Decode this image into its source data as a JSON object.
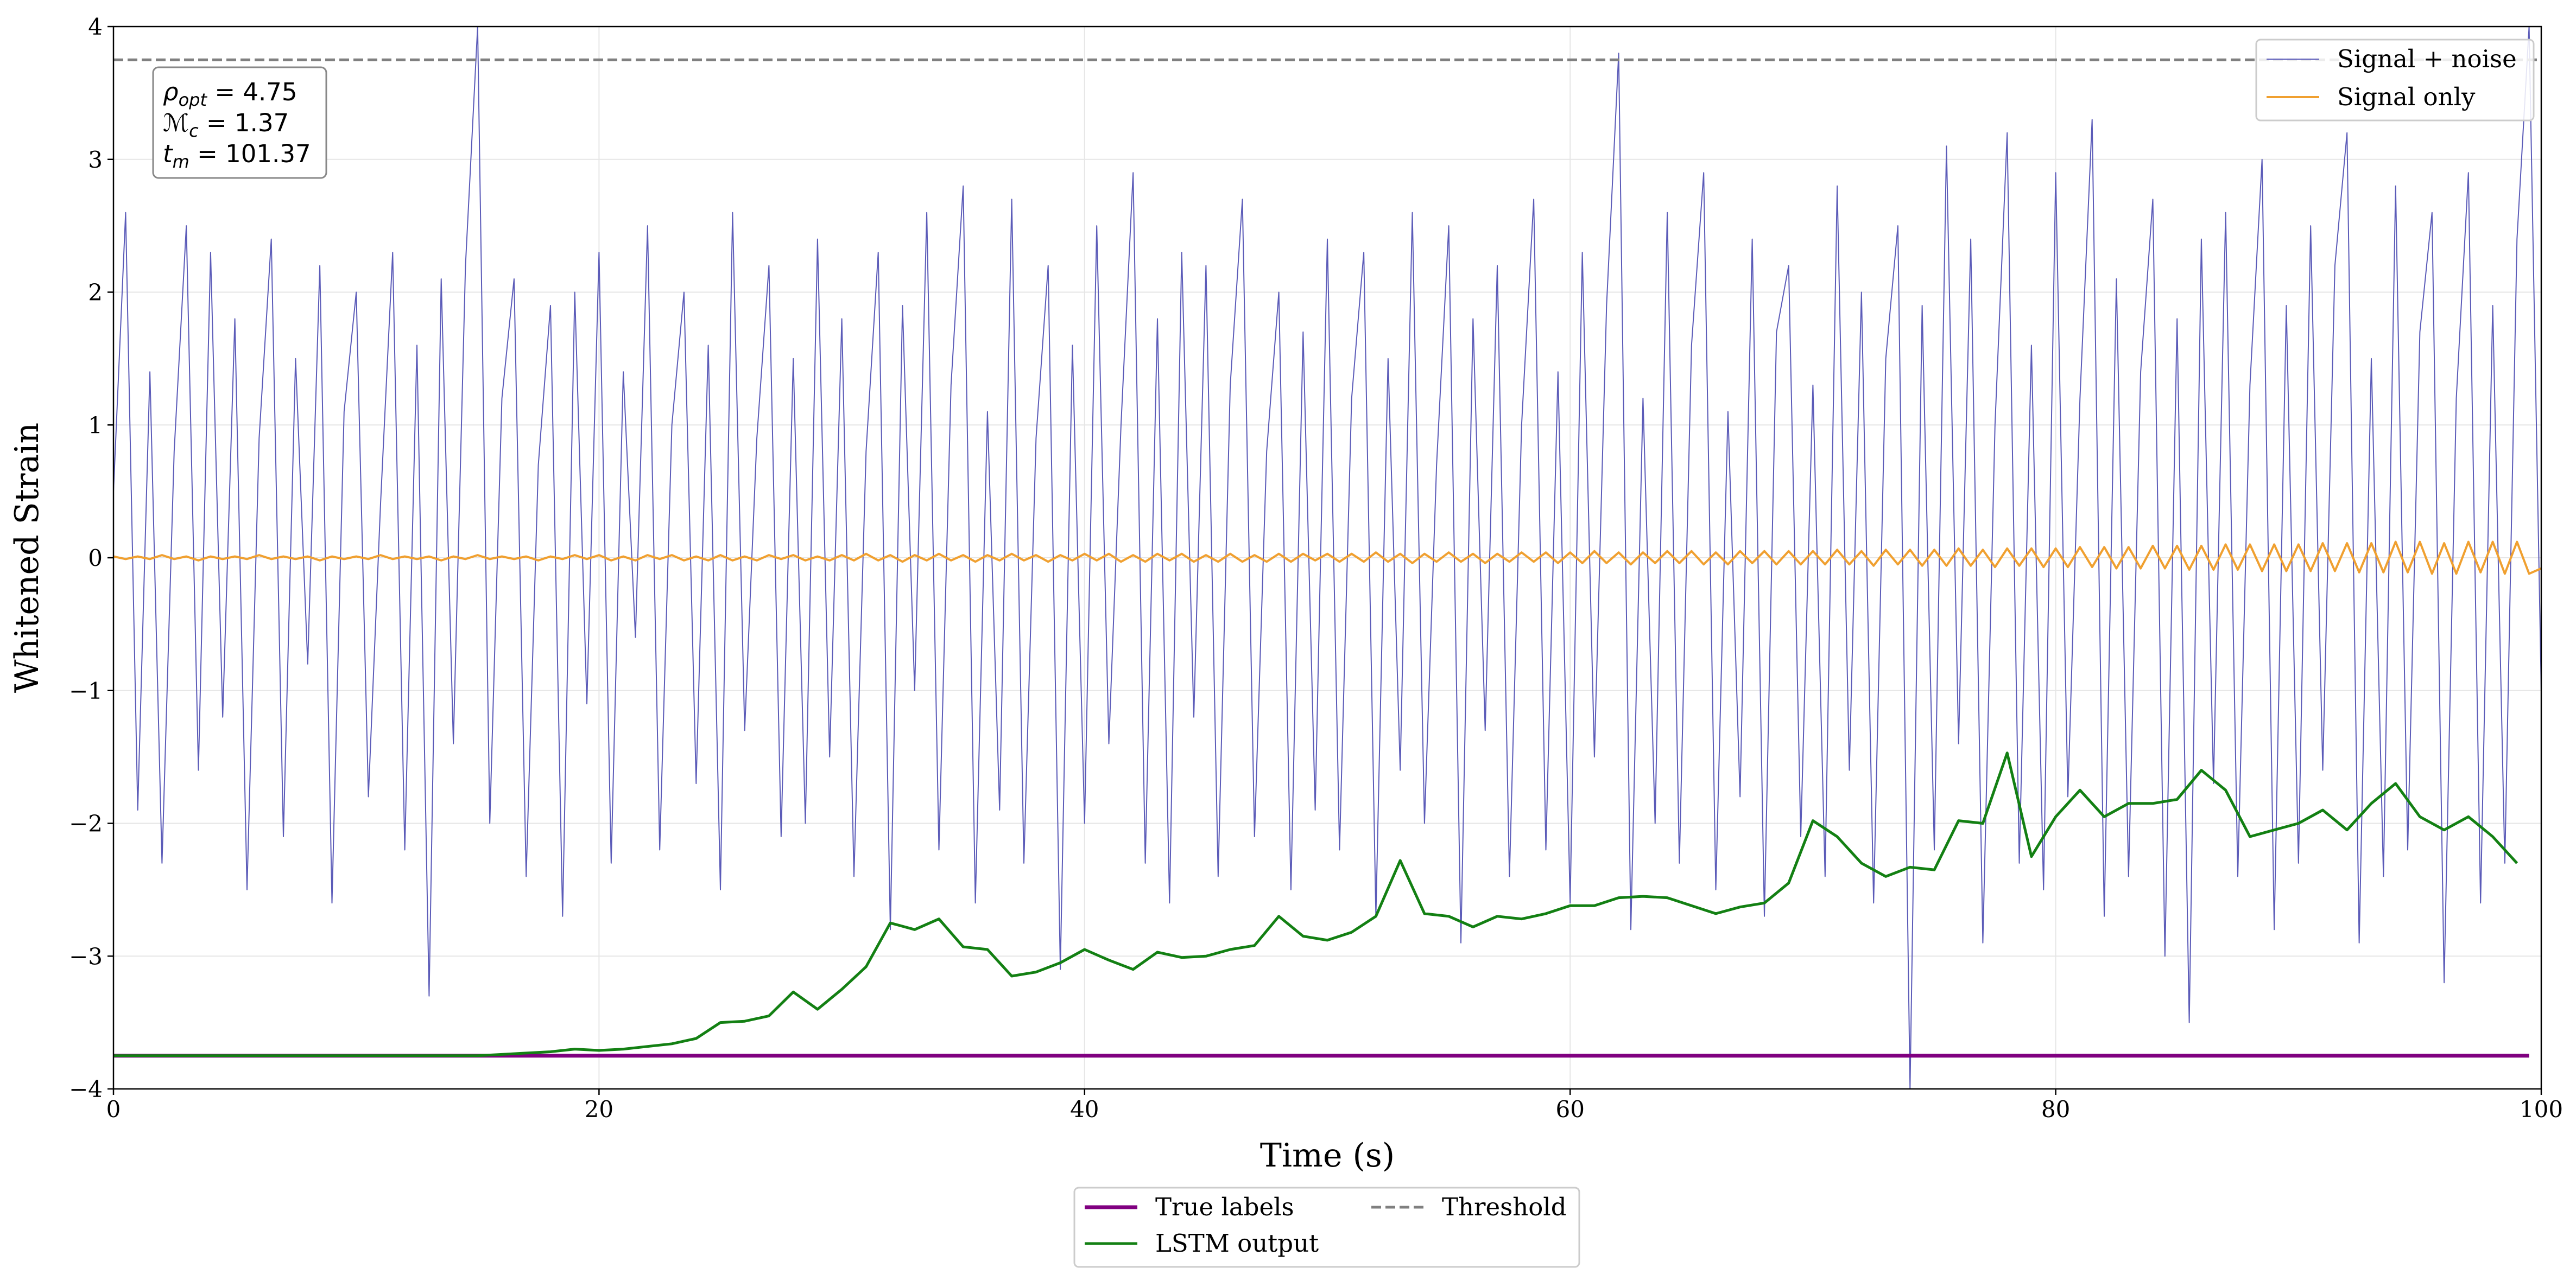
{
  "chart_data": {
    "type": "line",
    "xlabel": "Time (s)",
    "ylabel": "Whitened Strain",
    "xlim": [
      0,
      100
    ],
    "ylim": [
      -4,
      4
    ],
    "xticks": [
      0,
      20,
      40,
      60,
      80,
      100
    ],
    "yticks": [
      {
        "value": -4,
        "label": "−4"
      },
      {
        "value": -3,
        "label": "−3"
      },
      {
        "value": -2,
        "label": "−2"
      },
      {
        "value": -1,
        "label": "−1"
      },
      0,
      1,
      2,
      3,
      4
    ],
    "grid": true,
    "annotations": [
      {
        "main": "ρ",
        "sub": "opt",
        "rest": " = 4.75"
      },
      {
        "main": "ℳ",
        "sub": "c",
        "rest": " = 1.37"
      },
      {
        "main": "t",
        "sub": "m",
        "rest": " = 101.37"
      }
    ],
    "threshold": {
      "name": "Threshold",
      "value": 3.75,
      "color": "#808080",
      "dashed": true,
      "legend_loc": "lower center"
    },
    "x": [
      0,
      0.5,
      1,
      1.5,
      2,
      2.5,
      3,
      3.5,
      4,
      4.5,
      5,
      5.5,
      6,
      6.5,
      7,
      7.5,
      8,
      8.5,
      9,
      9.5,
      10,
      10.5,
      11,
      11.5,
      12,
      12.5,
      13,
      13.5,
      14,
      14.5,
      15,
      15.5,
      16,
      16.5,
      17,
      17.5,
      18,
      18.5,
      19,
      19.5,
      20,
      20.5,
      21,
      21.5,
      22,
      22.5,
      23,
      23.5,
      24,
      24.5,
      25,
      25.5,
      26,
      26.5,
      27,
      27.5,
      28,
      28.5,
      29,
      29.5,
      30,
      30.5,
      31,
      31.5,
      32,
      32.5,
      33,
      33.5,
      34,
      34.5,
      35,
      35.5,
      36,
      36.5,
      37,
      37.5,
      38,
      38.5,
      39,
      39.5,
      40,
      40.5,
      41,
      41.5,
      42,
      42.5,
      43,
      43.5,
      44,
      44.5,
      45,
      45.5,
      46,
      46.5,
      47,
      47.5,
      48,
      48.5,
      49,
      49.5,
      50,
      50.5,
      51,
      51.5,
      52,
      52.5,
      53,
      53.5,
      54,
      54.5,
      55,
      55.5,
      56,
      56.5,
      57,
      57.5,
      58,
      58.5,
      59,
      59.5,
      60,
      60.5,
      61,
      61.5,
      62,
      62.5,
      63,
      63.5,
      64,
      64.5,
      65,
      65.5,
      66,
      66.5,
      67,
      67.5,
      68,
      68.5,
      69,
      69.5,
      70,
      70.5,
      71,
      71.5,
      72,
      72.5,
      73,
      73.5,
      74,
      74.5,
      75,
      75.5,
      76,
      76.5,
      77,
      77.5,
      78,
      78.5,
      79,
      79.5,
      80,
      80.5,
      81,
      81.5,
      82,
      82.5,
      83,
      83.5,
      84,
      84.5,
      85,
      85.5,
      86,
      86.5,
      87,
      87.5,
      88,
      88.5,
      89,
      89.5,
      90,
      90.5,
      91,
      91.5,
      92,
      92.5,
      93,
      93.5,
      94,
      94.5,
      95,
      95.5,
      96,
      96.5,
      97,
      97.5,
      98,
      98.5,
      99,
      99.5,
      100
    ],
    "series": [
      {
        "name": "Signal + noise",
        "color": "#5b5bb8",
        "width": 2,
        "legend_loc": "upper right",
        "values": [
          0.5,
          2.6,
          -1.9,
          1.4,
          -2.3,
          0.8,
          2.5,
          -1.6,
          2.3,
          -1.2,
          1.8,
          -2.5,
          0.9,
          2.4,
          -2.1,
          1.5,
          -0.8,
          2.2,
          -2.6,
          1.1,
          2.0,
          -1.8,
          0.4,
          2.3,
          -2.2,
          1.6,
          -3.3,
          2.1,
          -1.4,
          2.2,
          4.0,
          -2.0,
          1.2,
          2.1,
          -2.4,
          0.7,
          1.9,
          -2.7,
          2.0,
          -1.1,
          2.3,
          -2.3,
          1.4,
          -0.6,
          2.5,
          -2.2,
          1.0,
          2.0,
          -1.7,
          1.6,
          -2.5,
          2.6,
          -1.3,
          0.9,
          2.2,
          -2.1,
          1.5,
          -2.0,
          2.4,
          -1.5,
          1.8,
          -2.4,
          0.8,
          2.3,
          -2.8,
          1.9,
          -1.0,
          2.6,
          -2.2,
          1.3,
          2.8,
          -2.6,
          1.1,
          -1.9,
          2.7,
          -2.3,
          0.9,
          2.2,
          -3.1,
          1.6,
          -2.0,
          2.5,
          -1.4,
          1.0,
          2.9,
          -2.3,
          1.8,
          -2.6,
          2.3,
          -1.2,
          2.2,
          -2.4,
          1.3,
          2.7,
          -2.1,
          0.8,
          2.0,
          -2.5,
          1.7,
          -1.9,
          2.4,
          -2.2,
          1.2,
          2.3,
          -2.7,
          1.5,
          -1.6,
          2.6,
          -2.0,
          0.7,
          2.5,
          -2.9,
          1.8,
          -1.3,
          2.2,
          -2.4,
          1.0,
          2.7,
          -2.2,
          1.4,
          -2.6,
          2.3,
          -1.5,
          1.9,
          3.8,
          -2.8,
          1.2,
          -2.0,
          2.6,
          -2.3,
          1.6,
          2.9,
          -2.5,
          1.1,
          -1.8,
          2.4,
          -2.7,
          1.7,
          2.2,
          -2.1,
          1.3,
          -2.4,
          2.8,
          -1.6,
          2.0,
          -2.6,
          1.5,
          2.5,
          -4.0,
          1.9,
          -2.2,
          3.1,
          -1.4,
          2.4,
          -2.9,
          1.0,
          3.2,
          -2.3,
          1.6,
          -2.5,
          2.9,
          -1.8,
          1.2,
          3.3,
          -2.7,
          2.1,
          -2.4,
          1.4,
          2.7,
          -3.0,
          1.8,
          -3.5,
          2.4,
          -1.7,
          2.6,
          -2.4,
          1.3,
          3.0,
          -2.8,
          1.9,
          -2.3,
          2.5,
          -1.6,
          2.2,
          3.2,
          -2.9,
          1.5,
          -2.4,
          2.8,
          -2.2,
          1.7,
          2.6,
          -3.2,
          1.2,
          2.9,
          -2.6,
          1.9,
          -2.3,
          2.4,
          4.0,
          -1.0
        ]
      },
      {
        "name": "Signal only",
        "color": "#f0a030",
        "width": 4,
        "legend_loc": "upper right",
        "values": [
          0.01,
          -0.01,
          0.01,
          -0.01,
          0.02,
          -0.01,
          0.01,
          -0.02,
          0.01,
          -0.01,
          0.01,
          -0.01,
          0.02,
          -0.01,
          0.01,
          -0.01,
          0.01,
          -0.02,
          0.01,
          -0.01,
          0.01,
          -0.01,
          0.02,
          -0.01,
          0.01,
          -0.01,
          0.01,
          -0.02,
          0.01,
          -0.01,
          0.02,
          -0.01,
          0.01,
          -0.01,
          0.01,
          -0.02,
          0.01,
          -0.01,
          0.02,
          -0.01,
          0.02,
          -0.02,
          0.01,
          -0.02,
          0.02,
          -0.01,
          0.02,
          -0.02,
          0.01,
          -0.02,
          0.02,
          -0.02,
          0.01,
          -0.02,
          0.02,
          -0.01,
          0.02,
          -0.02,
          0.01,
          -0.02,
          0.02,
          -0.02,
          0.03,
          -0.02,
          0.02,
          -0.03,
          0.02,
          -0.02,
          0.03,
          -0.02,
          0.02,
          -0.03,
          0.02,
          -0.02,
          0.03,
          -0.02,
          0.02,
          -0.03,
          0.02,
          -0.02,
          0.03,
          -0.02,
          0.03,
          -0.03,
          0.02,
          -0.03,
          0.03,
          -0.02,
          0.03,
          -0.03,
          0.02,
          -0.03,
          0.03,
          -0.03,
          0.02,
          -0.03,
          0.03,
          -0.03,
          0.03,
          -0.02,
          0.03,
          -0.03,
          0.03,
          -0.03,
          0.04,
          -0.03,
          0.03,
          -0.04,
          0.03,
          -0.03,
          0.04,
          -0.03,
          0.03,
          -0.04,
          0.03,
          -0.03,
          0.04,
          -0.03,
          0.04,
          -0.04,
          0.04,
          -0.04,
          0.05,
          -0.04,
          0.04,
          -0.05,
          0.04,
          -0.04,
          0.05,
          -0.04,
          0.05,
          -0.05,
          0.04,
          -0.05,
          0.05,
          -0.04,
          0.05,
          -0.05,
          0.05,
          -0.05,
          0.05,
          -0.05,
          0.06,
          -0.05,
          0.05,
          -0.06,
          0.06,
          -0.05,
          0.06,
          -0.06,
          0.06,
          -0.06,
          0.07,
          -0.06,
          0.06,
          -0.07,
          0.07,
          -0.06,
          0.07,
          -0.07,
          0.07,
          -0.07,
          0.08,
          -0.07,
          0.08,
          -0.08,
          0.08,
          -0.08,
          0.09,
          -0.08,
          0.09,
          -0.09,
          0.09,
          -0.09,
          0.1,
          -0.09,
          0.1,
          -0.1,
          0.1,
          -0.1,
          0.1,
          -0.1,
          0.11,
          -0.1,
          0.11,
          -0.11,
          0.11,
          -0.11,
          0.12,
          -0.11,
          0.12,
          -0.12,
          0.11,
          -0.12,
          0.12,
          -0.11,
          0.12,
          -0.12,
          0.12,
          -0.12,
          -0.08
        ]
      },
      {
        "name": "True labels",
        "color": "#800080",
        "width": 7,
        "legend_loc": "lower center",
        "x": [
          0,
          99.5
        ],
        "values": [
          -3.75,
          -3.75
        ]
      },
      {
        "name": "LSTM output",
        "color": "#138013",
        "width": 5,
        "legend_loc": "lower center",
        "x": [
          0,
          1,
          2,
          3,
          4,
          5,
          6,
          7,
          8,
          9,
          10,
          11,
          12,
          13,
          14,
          15,
          16,
          17,
          18,
          19,
          20,
          21,
          22,
          23,
          24,
          25,
          26,
          27,
          28,
          29,
          30,
          31,
          32,
          33,
          34,
          35,
          36,
          37,
          38,
          39,
          40,
          41,
          42,
          43,
          44,
          45,
          46,
          47,
          48,
          49,
          50,
          51,
          52,
          53,
          54,
          55,
          56,
          57,
          58,
          59,
          60,
          61,
          62,
          63,
          64,
          65,
          66,
          67,
          68,
          69,
          70,
          71,
          72,
          73,
          74,
          75,
          76,
          77,
          78,
          79,
          80,
          81,
          82,
          83,
          84,
          85,
          86,
          87,
          88,
          89,
          90,
          91,
          92,
          93,
          94,
          95,
          96,
          97,
          98,
          99
        ],
        "values": [
          -3.75,
          -3.75,
          -3.75,
          -3.75,
          -3.75,
          -3.75,
          -3.75,
          -3.75,
          -3.75,
          -3.75,
          -3.75,
          -3.75,
          -3.75,
          -3.75,
          -3.75,
          -3.75,
          -3.74,
          -3.73,
          -3.72,
          -3.7,
          -3.71,
          -3.7,
          -3.68,
          -3.66,
          -3.62,
          -3.5,
          -3.49,
          -3.45,
          -3.27,
          -3.4,
          -3.25,
          -3.08,
          -2.75,
          -2.8,
          -2.72,
          -2.93,
          -2.95,
          -3.15,
          -3.12,
          -3.05,
          -2.95,
          -3.03,
          -3.1,
          -2.97,
          -3.01,
          -3.0,
          -2.95,
          -2.92,
          -2.7,
          -2.85,
          -2.88,
          -2.82,
          -2.7,
          -2.28,
          -2.68,
          -2.7,
          -2.78,
          -2.7,
          -2.72,
          -2.68,
          -2.62,
          -2.62,
          -2.56,
          -2.55,
          -2.56,
          -2.62,
          -2.68,
          -2.63,
          -2.6,
          -2.45,
          -1.98,
          -2.1,
          -2.3,
          -2.4,
          -2.33,
          -2.35,
          -1.98,
          -2.0,
          -1.47,
          -2.25,
          -1.95,
          -1.75,
          -1.95,
          -1.85,
          -1.85,
          -1.82,
          -1.6,
          -1.75,
          -2.1,
          -2.05,
          -2.0,
          -1.9,
          -2.05,
          -1.85,
          -1.7,
          -1.95,
          -2.05,
          -1.95,
          -2.1,
          -2.3
        ]
      }
    ]
  }
}
